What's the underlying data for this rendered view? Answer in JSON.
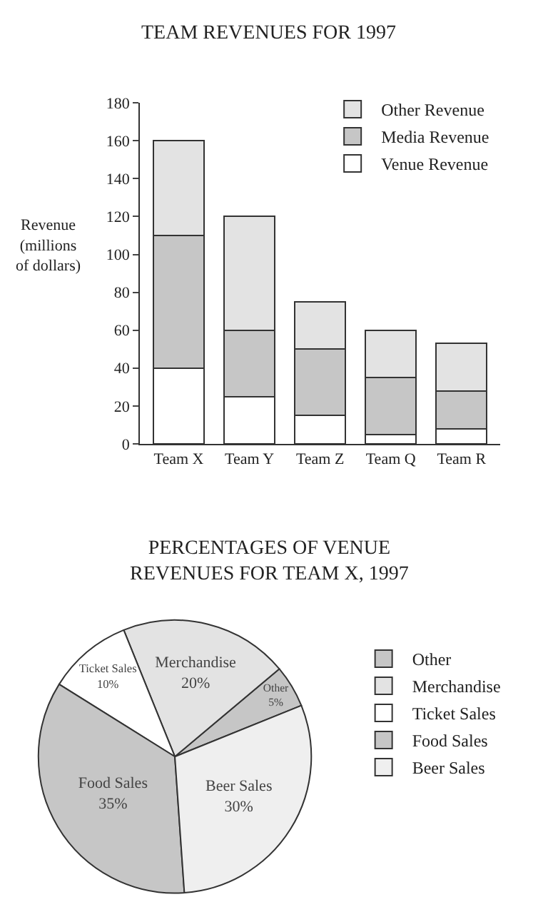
{
  "chart_data": [
    {
      "type": "bar",
      "title": "TEAM REVENUES FOR 1997",
      "ylabel": "Revenue\n(millions\nof dollars)",
      "categories": [
        "Team X",
        "Team Y",
        "Team Z",
        "Team Q",
        "Team R"
      ],
      "stacked": true,
      "series": [
        {
          "name": "Venue Revenue",
          "color": "#ffffff",
          "values": [
            40,
            25,
            15,
            5,
            8
          ]
        },
        {
          "name": "Media Revenue",
          "color": "#c6c6c6",
          "values": [
            70,
            35,
            35,
            30,
            20
          ]
        },
        {
          "name": "Other Revenue",
          "color": "#e3e3e3",
          "values": [
            50,
            60,
            25,
            25,
            25
          ]
        }
      ],
      "ylim": [
        0,
        180
      ],
      "yticks": [
        0,
        20,
        40,
        60,
        80,
        100,
        120,
        140,
        160,
        180
      ],
      "legend": "top right"
    },
    {
      "type": "pie",
      "title": "PERCENTAGES OF VENUE\nREVENUES FOR TEAM X, 1997",
      "categories": [
        "Other",
        "Merchandise",
        "Ticket Sales",
        "Food Sales",
        "Beer Sales"
      ],
      "values": [
        5,
        20,
        10,
        35,
        30
      ],
      "value_labels": [
        "5%",
        "20%",
        "10%",
        "35%",
        "30%"
      ],
      "colors": [
        "#c6c6c6",
        "#e3e3e3",
        "#ffffff",
        "#c6c6c6",
        "#efefef"
      ],
      "legend": "right"
    }
  ]
}
